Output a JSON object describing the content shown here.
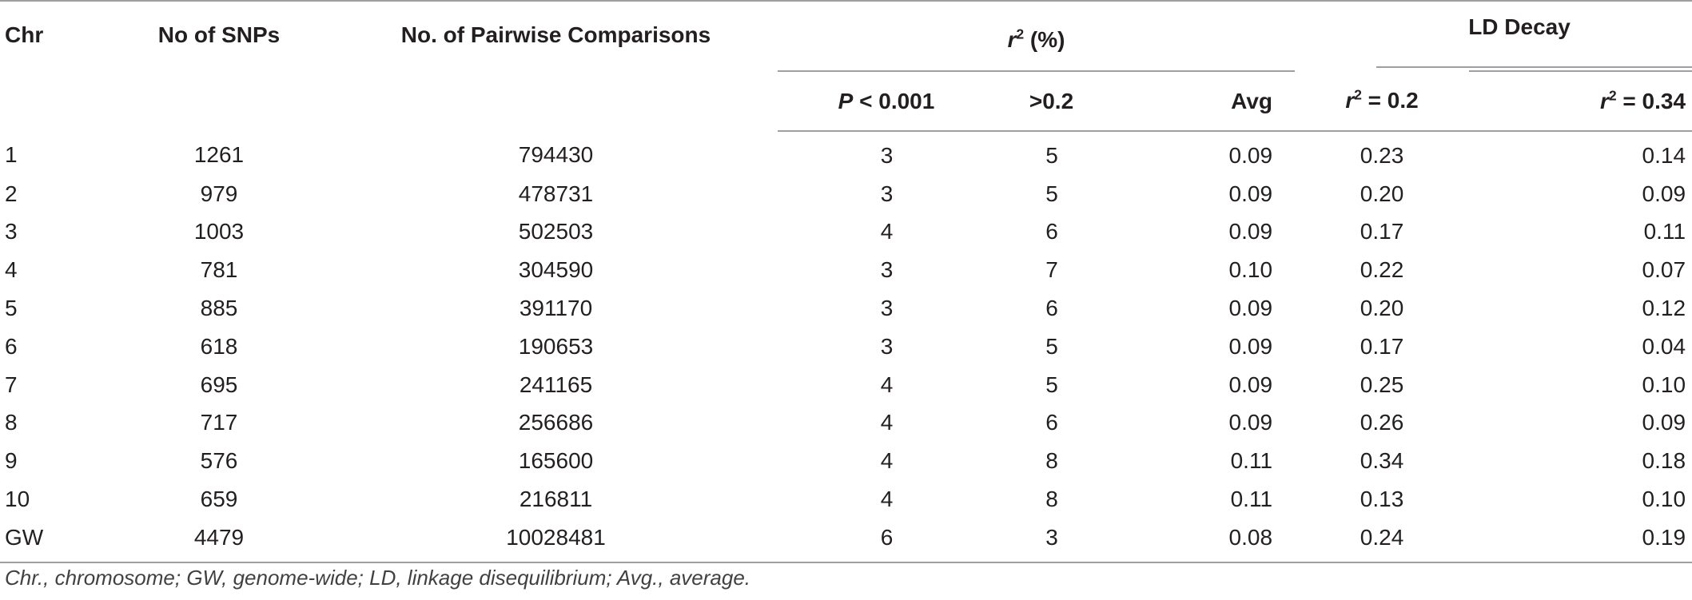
{
  "table": {
    "headers": {
      "chr": "Chr",
      "snps": "No of SNPs",
      "pairwise": "No. of Pairwise Comparisons",
      "r2_group": {
        "var": "r",
        "sup": "2",
        "suffix": " (%)"
      },
      "ld_group": "LD Decay",
      "p_col": {
        "var": "P",
        "rest": " < 0.001"
      },
      "gt_col": ">0.2",
      "avg_col": "Avg",
      "ld_r2_02": {
        "var": "r",
        "sup": "2",
        "rest": " = 0.2"
      },
      "ld_r2_034": {
        "var": "r",
        "sup": "2",
        "rest": " = 0.34"
      }
    },
    "rows": [
      {
        "chr": "1",
        "snps": "1261",
        "pairwise": "794430",
        "p": "3",
        "gt": "5",
        "avg": "0.09",
        "ld02": "0.23",
        "ld034": "0.14"
      },
      {
        "chr": "2",
        "snps": "979",
        "pairwise": "478731",
        "p": "3",
        "gt": "5",
        "avg": "0.09",
        "ld02": "0.20",
        "ld034": "0.09"
      },
      {
        "chr": "3",
        "snps": "1003",
        "pairwise": "502503",
        "p": "4",
        "gt": "6",
        "avg": "0.09",
        "ld02": "0.17",
        "ld034": "0.11"
      },
      {
        "chr": "4",
        "snps": "781",
        "pairwise": "304590",
        "p": "3",
        "gt": "7",
        "avg": "0.10",
        "ld02": "0.22",
        "ld034": "0.07"
      },
      {
        "chr": "5",
        "snps": "885",
        "pairwise": "391170",
        "p": "3",
        "gt": "6",
        "avg": "0.09",
        "ld02": "0.20",
        "ld034": "0.12"
      },
      {
        "chr": "6",
        "snps": "618",
        "pairwise": "190653",
        "p": "3",
        "gt": "5",
        "avg": "0.09",
        "ld02": "0.17",
        "ld034": "0.04"
      },
      {
        "chr": "7",
        "snps": "695",
        "pairwise": "241165",
        "p": "4",
        "gt": "5",
        "avg": "0.09",
        "ld02": "0.25",
        "ld034": "0.10"
      },
      {
        "chr": "8",
        "snps": "717",
        "pairwise": "256686",
        "p": "4",
        "gt": "6",
        "avg": "0.09",
        "ld02": "0.26",
        "ld034": "0.09"
      },
      {
        "chr": "9",
        "snps": "576",
        "pairwise": "165600",
        "p": "4",
        "gt": "8",
        "avg": "0.11",
        "ld02": "0.34",
        "ld034": "0.18"
      },
      {
        "chr": "10",
        "snps": "659",
        "pairwise": "216811",
        "p": "4",
        "gt": "8",
        "avg": "0.11",
        "ld02": "0.13",
        "ld034": "0.10"
      },
      {
        "chr": "GW",
        "snps": "4479",
        "pairwise": "10028481",
        "p": "6",
        "gt": "3",
        "avg": "0.08",
        "ld02": "0.24",
        "ld034": "0.19"
      }
    ]
  },
  "footnote": "Chr., chromosome; GW, genome-wide; LD, linkage disequilibrium; Avg., average.",
  "colors": {
    "text": "#231f20",
    "rule": "#9d9fa2",
    "note": "#414042"
  }
}
